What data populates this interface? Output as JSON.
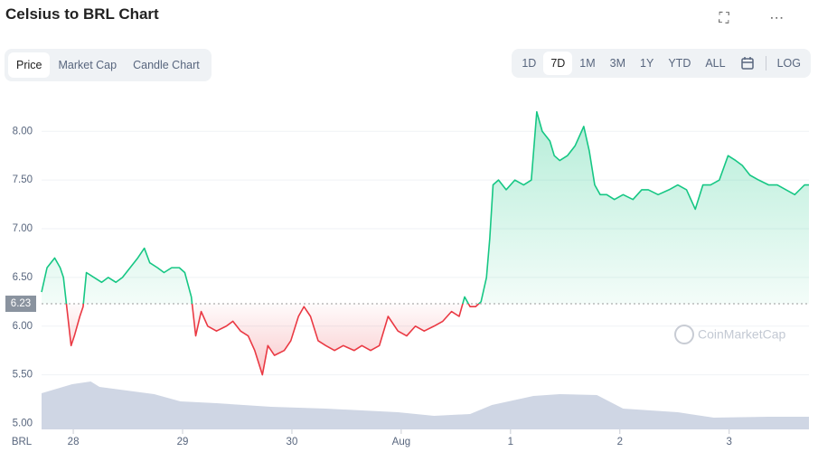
{
  "header": {
    "title": "Celsius to BRL Chart"
  },
  "tabs": [
    "Price",
    "Market Cap",
    "Candle Chart"
  ],
  "ranges": [
    "1D",
    "7D",
    "1M",
    "3M",
    "1Y",
    "YTD",
    "ALL"
  ],
  "log_button": "LOG",
  "watermark": "CoinMarketCap",
  "chart_data": {
    "type": "line",
    "currency": "BRL",
    "baseline": {
      "value": 6.23,
      "label": "6.23"
    },
    "xlim": [
      -0.29,
      6.73
    ],
    "ylim": [
      4.94,
      8.42
    ],
    "y2lim": [
      0,
      375
    ],
    "yticks": [
      {
        "value": 5,
        "label": "5.00"
      },
      {
        "value": 5.5,
        "label": "5.50"
      },
      {
        "value": 6,
        "label": "6.00"
      },
      {
        "value": 6.5,
        "label": "6.50"
      },
      {
        "value": 7,
        "label": "7.00"
      },
      {
        "value": 7.5,
        "label": "7.50"
      },
      {
        "value": 8,
        "label": "8.00"
      }
    ],
    "xticks": [
      {
        "value": 0,
        "label": "28"
      },
      {
        "value": 1,
        "label": "29"
      },
      {
        "value": 2,
        "label": "30"
      },
      {
        "value": 3,
        "label": "Aug"
      },
      {
        "value": 4,
        "label": "1"
      },
      {
        "value": 5,
        "label": "2"
      },
      {
        "value": 6,
        "label": "3"
      }
    ],
    "grid": true,
    "up_color": "#16c784",
    "down_color": "#ea3943",
    "x": [
      -0.29,
      -0.24,
      -0.17,
      -0.12,
      -0.09,
      -0.06,
      -0.02,
      0.01,
      0.06,
      0.09,
      0.12,
      0.19,
      0.26,
      0.32,
      0.39,
      0.45,
      0.52,
      0.59,
      0.65,
      0.7,
      0.77,
      0.83,
      0.9,
      0.97,
      1.02,
      1.08,
      1.12,
      1.17,
      1.23,
      1.31,
      1.4,
      1.46,
      1.53,
      1.6,
      1.66,
      1.73,
      1.78,
      1.84,
      1.93,
      1.99,
      2.06,
      2.11,
      2.17,
      2.24,
      2.31,
      2.39,
      2.47,
      2.57,
      2.64,
      2.72,
      2.8,
      2.88,
      2.97,
      3.05,
      3.13,
      3.21,
      3.3,
      3.38,
      3.46,
      3.53,
      3.58,
      3.63,
      3.68,
      3.73,
      3.78,
      3.81,
      3.84,
      3.89,
      3.96,
      4.04,
      4.12,
      4.19,
      4.24,
      4.29,
      4.36,
      4.4,
      4.45,
      4.52,
      4.59,
      4.67,
      4.72,
      4.77,
      4.82,
      4.88,
      4.95,
      5.03,
      5.12,
      5.2,
      5.26,
      5.35,
      5.45,
      5.53,
      5.61,
      5.69,
      5.76,
      5.83,
      5.91,
      5.99,
      6.06,
      6.12,
      6.19,
      6.27,
      6.36,
      6.44,
      6.52,
      6.6,
      6.69,
      6.73
    ],
    "series": [
      {
        "name": "Price",
        "values": [
          6.35,
          6.6,
          6.7,
          6.6,
          6.5,
          6.2,
          5.8,
          5.9,
          6.1,
          6.2,
          6.55,
          6.5,
          6.45,
          6.5,
          6.45,
          6.5,
          6.6,
          6.7,
          6.8,
          6.65,
          6.6,
          6.55,
          6.6,
          6.6,
          6.55,
          6.3,
          5.9,
          6.15,
          6.0,
          5.95,
          6.0,
          6.05,
          5.95,
          5.9,
          5.75,
          5.5,
          5.8,
          5.7,
          5.75,
          5.85,
          6.1,
          6.2,
          6.1,
          5.85,
          5.8,
          5.75,
          5.8,
          5.75,
          5.8,
          5.75,
          5.8,
          6.1,
          5.95,
          5.9,
          6.0,
          5.95,
          6.0,
          6.05,
          6.15,
          6.1,
          6.3,
          6.2,
          6.2,
          6.25,
          6.5,
          6.9,
          7.45,
          7.5,
          7.4,
          7.5,
          7.45,
          7.5,
          8.2,
          8.0,
          7.9,
          7.75,
          7.7,
          7.75,
          7.85,
          8.05,
          7.8,
          7.45,
          7.35,
          7.35,
          7.3,
          7.35,
          7.3,
          7.4,
          7.4,
          7.35,
          7.4,
          7.45,
          7.4,
          7.2,
          7.45,
          7.45,
          7.5,
          7.75,
          7.7,
          7.65,
          7.55,
          7.5,
          7.45,
          7.45,
          7.4,
          7.35,
          7.45,
          7.45
        ]
      }
    ],
    "volume": {
      "color": "#cfd6e4",
      "axis": "y2",
      "x": [
        -0.29,
        -0.01,
        0.16,
        0.24,
        0.49,
        0.74,
        0.98,
        1.31,
        1.81,
        2.31,
        2.97,
        3.3,
        3.63,
        3.83,
        4.21,
        4.45,
        4.79,
        5.03,
        5.53,
        5.86,
        6.36,
        6.73
      ],
      "values": [
        40,
        50,
        53,
        47,
        43,
        39,
        31,
        29,
        25,
        23,
        19,
        15,
        17,
        27,
        37,
        39,
        38,
        23,
        19,
        13,
        14,
        14
      ]
    }
  }
}
